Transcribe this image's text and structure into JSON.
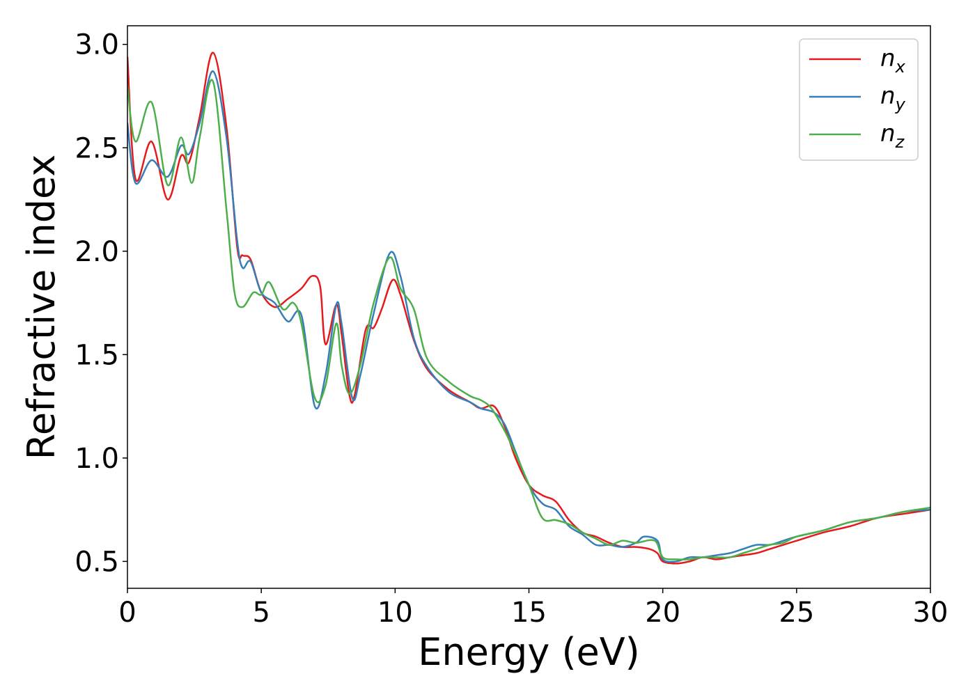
{
  "chart_data": {
    "type": "line",
    "title": "",
    "xlabel": "Energy (eV)",
    "ylabel": "Refractive index",
    "xlim": [
      0,
      30
    ],
    "ylim": [
      0.37,
      3.09
    ],
    "xticks": [
      0,
      5,
      10,
      15,
      20,
      25,
      30
    ],
    "xtick_labels": [
      "0",
      "5",
      "10",
      "15",
      "20",
      "25",
      "30"
    ],
    "yticks": [
      0.5,
      1.0,
      1.5,
      2.0,
      2.5,
      3.0
    ],
    "ytick_labels": [
      "0.5",
      "1.0",
      "1.5",
      "2.0",
      "2.5",
      "3.0"
    ],
    "grid": false,
    "legend_position": "top-right",
    "series": [
      {
        "name": "n_x",
        "label_base": "n",
        "label_sub": "x",
        "color": "#e41a1c",
        "x": [
          0,
          0.3,
          0.9,
          1.5,
          2.0,
          2.3,
          2.7,
          3.2,
          3.7,
          4.1,
          4.3,
          4.6,
          5.0,
          5.5,
          6.0,
          6.5,
          6.9,
          7.2,
          7.4,
          7.8,
          8.0,
          8.3,
          8.5,
          8.9,
          9.2,
          9.5,
          9.9,
          10.2,
          10.7,
          11.2,
          12.0,
          12.8,
          13.2,
          13.7,
          14.1,
          14.5,
          15.0,
          15.5,
          16.0,
          16.5,
          17.0,
          17.5,
          18.0,
          18.5,
          19.0,
          19.5,
          19.8,
          20.0,
          20.5,
          21.0,
          21.5,
          22.0,
          22.5,
          23.0,
          23.5,
          24.0,
          24.5,
          25.0,
          26.0,
          27.0,
          28.0,
          29.0,
          30.0
        ],
        "y": [
          2.94,
          2.35,
          2.53,
          2.25,
          2.46,
          2.43,
          2.65,
          2.96,
          2.6,
          2.02,
          1.98,
          1.96,
          1.8,
          1.73,
          1.77,
          1.82,
          1.88,
          1.83,
          1.55,
          1.74,
          1.6,
          1.3,
          1.31,
          1.62,
          1.63,
          1.72,
          1.86,
          1.79,
          1.57,
          1.43,
          1.33,
          1.27,
          1.24,
          1.25,
          1.15,
          1.0,
          0.87,
          0.82,
          0.79,
          0.7,
          0.64,
          0.62,
          0.59,
          0.57,
          0.57,
          0.56,
          0.54,
          0.5,
          0.49,
          0.5,
          0.52,
          0.51,
          0.52,
          0.53,
          0.54,
          0.56,
          0.58,
          0.6,
          0.64,
          0.67,
          0.71,
          0.73,
          0.75
        ]
      },
      {
        "name": "n_y",
        "label_base": "n",
        "label_sub": "y",
        "color": "#377eb8",
        "x": [
          0,
          0.3,
          0.9,
          1.5,
          2.0,
          2.3,
          2.7,
          3.2,
          3.7,
          4.1,
          4.3,
          4.6,
          5.0,
          5.5,
          6.0,
          6.5,
          7.0,
          7.4,
          7.8,
          8.0,
          8.4,
          8.7,
          9.2,
          9.8,
          10.2,
          10.7,
          11.2,
          12.0,
          12.8,
          13.2,
          13.7,
          14.1,
          14.5,
          15.0,
          15.5,
          16.0,
          16.5,
          17.0,
          17.5,
          18.0,
          18.5,
          19.0,
          19.3,
          19.8,
          20.0,
          20.5,
          21.0,
          21.5,
          22.0,
          22.5,
          23.0,
          23.5,
          24.0,
          24.5,
          25.0,
          26.0,
          27.0,
          28.0,
          29.0,
          30.0
        ],
        "y": [
          2.62,
          2.33,
          2.44,
          2.36,
          2.51,
          2.47,
          2.62,
          2.87,
          2.55,
          2.05,
          1.92,
          1.95,
          1.8,
          1.75,
          1.66,
          1.69,
          1.25,
          1.4,
          1.74,
          1.65,
          1.29,
          1.4,
          1.7,
          1.99,
          1.88,
          1.58,
          1.44,
          1.32,
          1.27,
          1.24,
          1.22,
          1.16,
          1.03,
          0.87,
          0.78,
          0.75,
          0.67,
          0.63,
          0.58,
          0.58,
          0.57,
          0.59,
          0.62,
          0.6,
          0.51,
          0.5,
          0.52,
          0.52,
          0.53,
          0.54,
          0.56,
          0.58,
          0.58,
          0.6,
          0.62,
          0.65,
          0.69,
          0.71,
          0.74,
          0.75
        ]
      },
      {
        "name": "n_z",
        "label_base": "n",
        "label_sub": "z",
        "color": "#4daf4a",
        "x": [
          0,
          0.3,
          0.9,
          1.5,
          2.0,
          2.4,
          2.7,
          3.2,
          3.7,
          4.0,
          4.3,
          4.7,
          5.0,
          5.3,
          5.8,
          6.2,
          6.5,
          7.0,
          7.4,
          7.8,
          8.0,
          8.3,
          8.7,
          9.2,
          9.8,
          10.2,
          10.7,
          11.2,
          12.0,
          12.8,
          13.2,
          13.6,
          14.1,
          14.5,
          15.0,
          15.5,
          16.0,
          16.5,
          17.0,
          17.5,
          18.0,
          18.5,
          19.0,
          19.7,
          20.0,
          20.5,
          21.0,
          21.5,
          22.0,
          22.5,
          23.0,
          23.5,
          24.0,
          24.5,
          25.0,
          26.0,
          27.0,
          28.0,
          29.0,
          30.0
        ],
        "y": [
          2.8,
          2.53,
          2.72,
          2.32,
          2.55,
          2.33,
          2.55,
          2.82,
          2.2,
          1.8,
          1.73,
          1.8,
          1.79,
          1.85,
          1.72,
          1.75,
          1.65,
          1.29,
          1.35,
          1.65,
          1.45,
          1.31,
          1.45,
          1.75,
          1.97,
          1.82,
          1.72,
          1.48,
          1.37,
          1.3,
          1.28,
          1.24,
          1.13,
          1.02,
          0.87,
          0.71,
          0.7,
          0.68,
          0.64,
          0.61,
          0.58,
          0.6,
          0.59,
          0.6,
          0.52,
          0.51,
          0.51,
          0.52,
          0.52,
          0.52,
          0.54,
          0.56,
          0.58,
          0.59,
          0.62,
          0.65,
          0.69,
          0.71,
          0.74,
          0.76
        ]
      }
    ]
  }
}
